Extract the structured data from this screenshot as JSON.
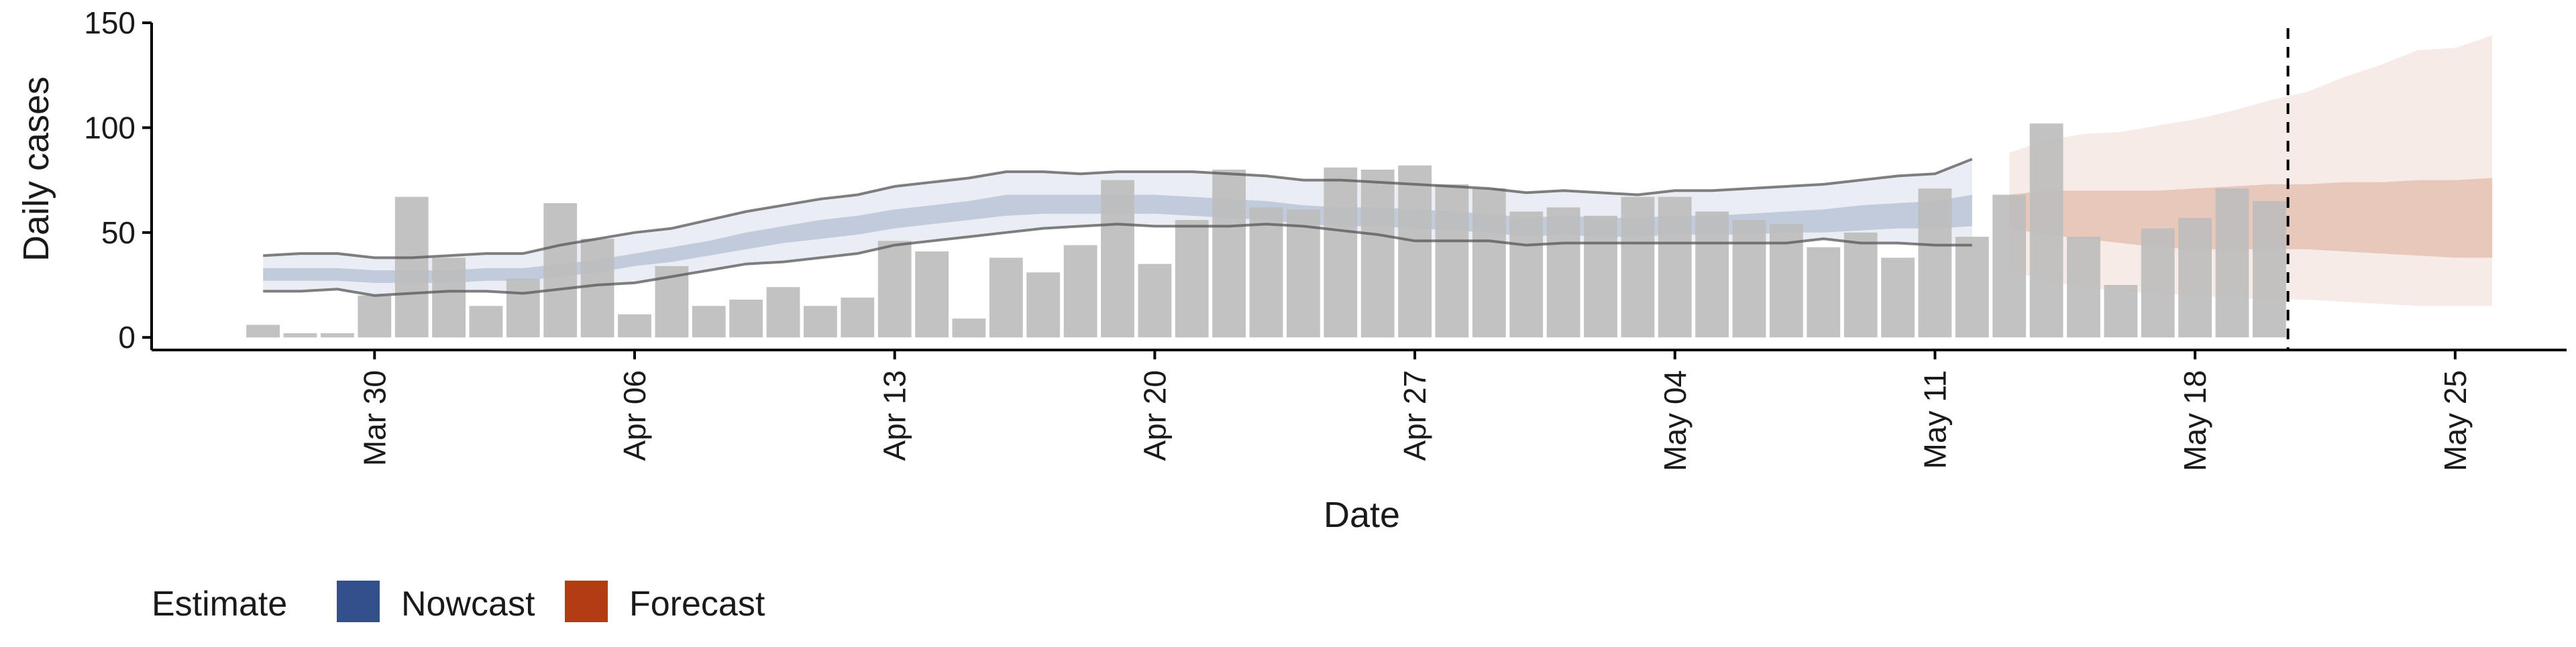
{
  "chart_data": {
    "type": "bar",
    "xlabel": "Date",
    "ylabel": "Daily cases",
    "ylim": [
      -6,
      150
    ],
    "xlim": [
      "2020-03-24",
      "2020-05-28"
    ],
    "x_ticks": [
      {
        "date": "2020-03-30",
        "label": "Mar 30"
      },
      {
        "date": "2020-04-06",
        "label": "Apr 06"
      },
      {
        "date": "2020-04-13",
        "label": "Apr 13"
      },
      {
        "date": "2020-04-20",
        "label": "Apr 20"
      },
      {
        "date": "2020-04-27",
        "label": "Apr 27"
      },
      {
        "date": "2020-05-04",
        "label": "May 04"
      },
      {
        "date": "2020-05-11",
        "label": "May 11"
      },
      {
        "date": "2020-05-18",
        "label": "May 18"
      },
      {
        "date": "2020-05-25",
        "label": "May 25"
      }
    ],
    "y_ticks": [
      0,
      50,
      100,
      150
    ],
    "bars": {
      "name": "Daily cases",
      "color": "#bdbdbd",
      "dates": [
        "2020-03-27",
        "2020-03-28",
        "2020-03-29",
        "2020-03-30",
        "2020-03-31",
        "2020-04-01",
        "2020-04-02",
        "2020-04-03",
        "2020-04-04",
        "2020-04-05",
        "2020-04-06",
        "2020-04-07",
        "2020-04-08",
        "2020-04-09",
        "2020-04-10",
        "2020-04-11",
        "2020-04-12",
        "2020-04-13",
        "2020-04-14",
        "2020-04-15",
        "2020-04-16",
        "2020-04-17",
        "2020-04-18",
        "2020-04-19",
        "2020-04-20",
        "2020-04-21",
        "2020-04-22",
        "2020-04-23",
        "2020-04-24",
        "2020-04-25",
        "2020-04-26",
        "2020-04-27",
        "2020-04-28",
        "2020-04-29",
        "2020-04-30",
        "2020-05-01",
        "2020-05-02",
        "2020-05-03",
        "2020-05-04",
        "2020-05-05",
        "2020-05-06",
        "2020-05-07",
        "2020-05-08",
        "2020-05-09",
        "2020-05-10",
        "2020-05-11",
        "2020-05-12",
        "2020-05-13",
        "2020-05-14",
        "2020-05-15",
        "2020-05-16",
        "2020-05-17",
        "2020-05-18",
        "2020-05-19",
        "2020-05-20"
      ],
      "values": [
        6,
        2,
        2,
        20,
        67,
        38,
        15,
        28,
        64,
        47,
        11,
        34,
        15,
        18,
        24,
        15,
        19,
        46,
        41,
        9,
        38,
        31,
        44,
        75,
        35,
        56,
        80,
        62,
        61,
        81,
        80,
        82,
        73,
        71,
        60,
        62,
        58,
        67,
        67,
        60,
        56,
        54,
        43,
        50,
        38,
        71,
        48,
        68,
        102,
        48,
        25,
        52,
        57,
        71,
        65
      ]
    },
    "nowcast": {
      "name": "Nowcast",
      "color": "#34508c",
      "dates": [
        "2020-03-27",
        "2020-03-28",
        "2020-03-29",
        "2020-03-30",
        "2020-03-31",
        "2020-04-01",
        "2020-04-02",
        "2020-04-03",
        "2020-04-04",
        "2020-04-05",
        "2020-04-06",
        "2020-04-07",
        "2020-04-08",
        "2020-04-09",
        "2020-04-10",
        "2020-04-11",
        "2020-04-12",
        "2020-04-13",
        "2020-04-14",
        "2020-04-15",
        "2020-04-16",
        "2020-04-17",
        "2020-04-18",
        "2020-04-19",
        "2020-04-20",
        "2020-04-21",
        "2020-04-22",
        "2020-04-23",
        "2020-04-24",
        "2020-04-25",
        "2020-04-26",
        "2020-04-27",
        "2020-04-28",
        "2020-04-29",
        "2020-04-30",
        "2020-05-01",
        "2020-05-02",
        "2020-05-03",
        "2020-05-04",
        "2020-05-05",
        "2020-05-06",
        "2020-05-07",
        "2020-05-08",
        "2020-05-09",
        "2020-05-10",
        "2020-05-11",
        "2020-05-12"
      ],
      "upper90": [
        39,
        40,
        40,
        38,
        38,
        39,
        40,
        40,
        44,
        47,
        50,
        52,
        56,
        60,
        63,
        66,
        68,
        72,
        74,
        76,
        79,
        79,
        78,
        79,
        79,
        79,
        78,
        77,
        75,
        75,
        74,
        73,
        72,
        71,
        69,
        70,
        69,
        68,
        70,
        70,
        71,
        72,
        73,
        75,
        77,
        78,
        85
      ],
      "upper50": [
        33,
        33,
        33,
        32,
        32,
        32,
        33,
        33,
        35,
        37,
        40,
        43,
        46,
        50,
        53,
        56,
        58,
        61,
        63,
        65,
        68,
        68,
        68,
        68,
        68,
        67,
        66,
        65,
        63,
        62,
        62,
        61,
        60,
        59,
        57,
        58,
        57,
        57,
        58,
        58,
        59,
        60,
        61,
        63,
        64,
        65,
        68
      ],
      "lower50": [
        27,
        27,
        27,
        26,
        26,
        26,
        27,
        27,
        29,
        31,
        34,
        36,
        39,
        42,
        45,
        47,
        49,
        52,
        54,
        56,
        58,
        59,
        59,
        59,
        59,
        58,
        57,
        56,
        54,
        53,
        53,
        52,
        51,
        50,
        48,
        49,
        48,
        48,
        49,
        49,
        49,
        50,
        50,
        51,
        52,
        52,
        53
      ],
      "lower90": [
        22,
        22,
        23,
        20,
        21,
        22,
        22,
        21,
        23,
        25,
        26,
        29,
        32,
        35,
        36,
        38,
        40,
        44,
        46,
        48,
        50,
        52,
        53,
        54,
        53,
        53,
        53,
        54,
        53,
        51,
        49,
        46,
        46,
        46,
        44,
        45,
        45,
        45,
        45,
        45,
        45,
        45,
        47,
        45,
        45,
        44,
        44
      ]
    },
    "forecast": {
      "name": "Forecast",
      "color": "#b33c13",
      "dates": [
        "2020-05-13",
        "2020-05-14",
        "2020-05-15",
        "2020-05-16",
        "2020-05-17",
        "2020-05-18",
        "2020-05-19",
        "2020-05-20",
        "2020-05-21",
        "2020-05-22",
        "2020-05-23",
        "2020-05-24",
        "2020-05-25",
        "2020-05-26"
      ],
      "upper90": [
        88,
        94,
        97,
        98,
        101,
        104,
        108,
        113,
        117,
        124,
        130,
        137,
        138,
        144
      ],
      "upper50": [
        68,
        70,
        70,
        70,
        70,
        71,
        72,
        73,
        73,
        74,
        74,
        75,
        75,
        76
      ],
      "lower50": [
        52,
        49,
        47,
        45,
        43,
        42,
        42,
        42,
        42,
        41,
        40,
        39,
        38,
        38
      ],
      "lower90": [
        32,
        27,
        24,
        22,
        21,
        20,
        19,
        18,
        18,
        17,
        16,
        15,
        15,
        15
      ]
    },
    "vline_date": "2020-05-20",
    "legend": {
      "position": "bottom-left",
      "title": "Estimate",
      "entries": [
        {
          "label": "Nowcast",
          "color": "#34508c"
        },
        {
          "label": "Forecast",
          "color": "#b33c13"
        }
      ]
    },
    "grid": false
  }
}
